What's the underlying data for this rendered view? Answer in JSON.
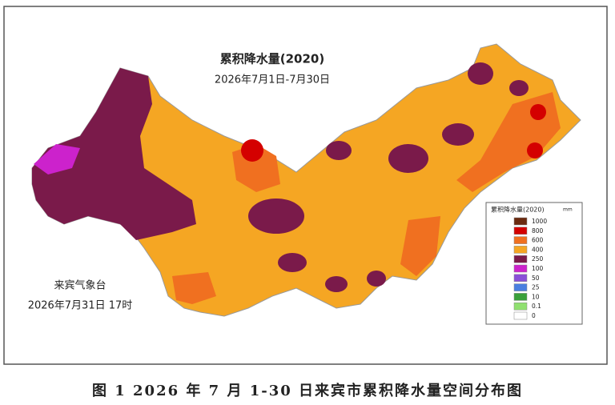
{
  "map": {
    "title": "累积降水量(2020)",
    "subtitle": "2026年7月1日-7月30日",
    "issuer": "来宾气象台",
    "issued_time": "2026年7月31日 17时",
    "legend": {
      "title": "累积降水量(2020)",
      "unit": "mm",
      "levels": [
        {
          "label": "1000",
          "color": "#6b2a10"
        },
        {
          "label": "800",
          "color": "#d40000"
        },
        {
          "label": "600",
          "color": "#f07020"
        },
        {
          "label": "400",
          "color": "#f5a623"
        },
        {
          "label": "250",
          "color": "#7a1a4a"
        },
        {
          "label": "100",
          "color": "#cc22cc"
        },
        {
          "label": "50",
          "color": "#8a4fd8"
        },
        {
          "label": "25",
          "color": "#4a7fe0"
        },
        {
          "label": "10",
          "color": "#3aa03a"
        },
        {
          "label": "0.1",
          "color": "#90e070"
        },
        {
          "label": "0",
          "color": "#ffffff"
        }
      ]
    }
  },
  "caption": "图 1 2026 年 7 月 1-30 日来宾市累积降水量空间分布图"
}
